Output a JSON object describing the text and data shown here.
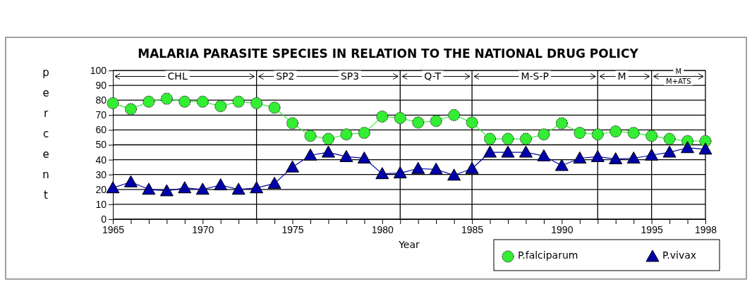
{
  "chart_data": {
    "type": "line",
    "title": "MALARIA PARASITE SPECIES IN RELATION TO THE NATIONAL DRUG POLICY",
    "xlabel": "Year",
    "ylabel": "percent",
    "x": [
      1965,
      1966,
      1967,
      1968,
      1969,
      1970,
      1971,
      1972,
      1973,
      1974,
      1975,
      1976,
      1977,
      1978,
      1979,
      1980,
      1981,
      1982,
      1983,
      1984,
      1985,
      1986,
      1987,
      1988,
      1989,
      1990,
      1991,
      1992,
      1993,
      1994,
      1995,
      1996,
      1997,
      1998
    ],
    "series": [
      {
        "name": "P.falciparum",
        "color": "#33ee33",
        "marker": "circle",
        "values": [
          78,
          74,
          79,
          81,
          79,
          79,
          76,
          79,
          78,
          75,
          64.5,
          56,
          54,
          57,
          58,
          69,
          68,
          65,
          66,
          70,
          65,
          54,
          54,
          54,
          57,
          64.5,
          58,
          57,
          59,
          58,
          56,
          54,
          52.5,
          52.5
        ]
      },
      {
        "name": "P.vivax",
        "color": "#0000aa",
        "marker": "triangle",
        "values": [
          21,
          25,
          20,
          19,
          21,
          20,
          23,
          20,
          21,
          24,
          35,
          43,
          45,
          42,
          41,
          30.5,
          31,
          34,
          33.5,
          29.5,
          34,
          45,
          45,
          45,
          42.5,
          36,
          41,
          42,
          40.5,
          41,
          43,
          45,
          48,
          47
        ]
      }
    ],
    "xlim": [
      1965,
      1998
    ],
    "ylim": [
      0,
      100
    ],
    "xticks": [
      1965,
      {
        "value": 1966,
        "label": null
      },
      {
        "value": 1967,
        "label": null
      },
      {
        "value": 1968,
        "label": null
      },
      {
        "value": 1969,
        "label": null
      },
      1970,
      {
        "value": 1971,
        "label": null
      },
      {
        "value": 1972,
        "label": null
      },
      {
        "value": 1973,
        "label": null
      },
      {
        "value": 1974,
        "label": null
      },
      1975,
      {
        "value": 1976,
        "label": null
      },
      {
        "value": 1977,
        "label": null
      },
      {
        "value": 1978,
        "label": null
      },
      {
        "value": 1979,
        "label": null
      },
      1980,
      {
        "value": 1981,
        "label": null
      },
      {
        "value": 1982,
        "label": null
      },
      {
        "value": 1983,
        "label": null
      },
      {
        "value": 1984,
        "label": null
      },
      1985,
      {
        "value": 1986,
        "label": null
      },
      {
        "value": 1987,
        "label": null
      },
      {
        "value": 1988,
        "label": null
      },
      {
        "value": 1989,
        "label": null
      },
      1990,
      {
        "value": 1991,
        "label": null
      },
      {
        "value": 1992,
        "label": null
      },
      {
        "value": 1993,
        "label": null
      },
      {
        "value": 1994,
        "label": null
      },
      1995,
      {
        "value": 1996,
        "label": null
      },
      {
        "value": 1997,
        "label": null
      },
      1998
    ],
    "yticks": [
      0,
      10,
      20,
      30,
      40,
      50,
      60,
      70,
      80,
      90,
      100
    ],
    "grid": "y",
    "legend": "bottom right",
    "ref_lines": [
      {
        "axis": "x",
        "value": 1973,
        "color": "#000000"
      },
      {
        "axis": "x",
        "value": 1981,
        "color": "#000000"
      },
      {
        "axis": "x",
        "value": 1985,
        "color": "#000000"
      },
      {
        "axis": "x",
        "value": 1992,
        "color": "#000000"
      },
      {
        "axis": "x",
        "value": 1995,
        "color": "#000000"
      }
    ],
    "annotations": [
      "CHL",
      "SP2",
      "SP3",
      "Q-T",
      "M-S-P",
      "M",
      "M",
      "M+ATS"
    ]
  }
}
